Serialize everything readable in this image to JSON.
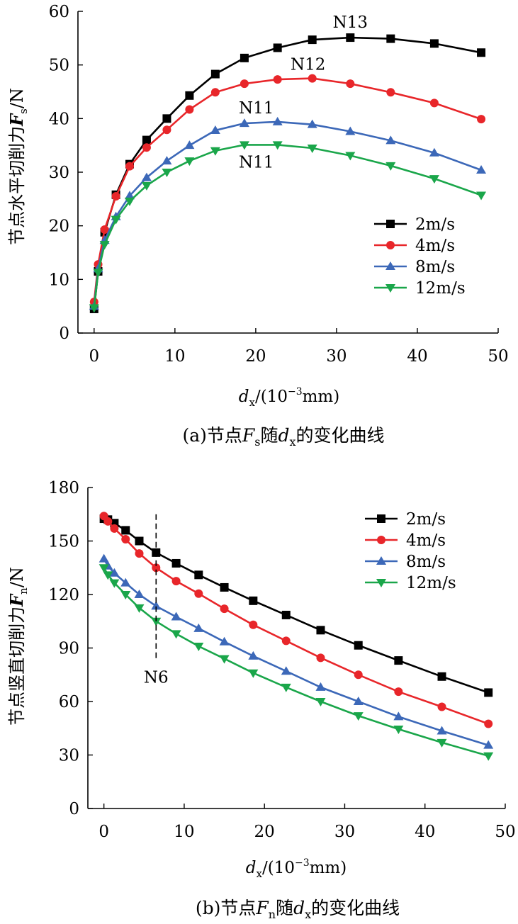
{
  "charts": [
    {
      "caption_pre": "(a)节点",
      "caption_F": "F",
      "caption_F_sub": "s",
      "caption_mid": "随",
      "caption_d": "d",
      "caption_d_sub": "x",
      "caption_post": "的变化曲线",
      "ylabel_pre": "节点水平切削力",
      "ylabel_F": "F",
      "ylabel_F_sub": "s",
      "ylabel_post": "/N",
      "xlabel_d": "d",
      "xlabel_d_sub": "x",
      "xlabel_unit_pre": "/(10",
      "xlabel_unit_exp": "−3",
      "xlabel_unit_post": "mm)"
    },
    {
      "caption_pre": "(b)节点",
      "caption_F": "F",
      "caption_F_sub": "n",
      "caption_mid": "随",
      "caption_d": "d",
      "caption_d_sub": "x",
      "caption_post": "的变化曲线",
      "ylabel_pre": "节点竖直切削力",
      "ylabel_F": "F",
      "ylabel_F_sub": "n",
      "ylabel_post": "/N",
      "xlabel_d": "d",
      "xlabel_d_sub": "x",
      "xlabel_unit_pre": "/(10",
      "xlabel_unit_exp": "−3",
      "xlabel_unit_post": "mm)"
    }
  ],
  "chart_data": [
    {
      "type": "line",
      "xlim": [
        -2,
        50
      ],
      "ylim": [
        0,
        60
      ],
      "xticks": [
        0,
        10,
        20,
        30,
        40,
        50
      ],
      "yticks": [
        0,
        10,
        20,
        30,
        40,
        50,
        60
      ],
      "grid": false,
      "legend": "right",
      "series": [
        {
          "name": "2m/s",
          "color": "#000000",
          "marker": "square",
          "x": [
            0,
            0.5,
            1.3,
            2.7,
            4.4,
            6.5,
            9.0,
            11.8,
            15.0,
            18.6,
            22.7,
            27.0,
            31.7,
            36.7,
            42.1,
            47.9
          ],
          "y": [
            4.5,
            11.5,
            18.8,
            25.8,
            31.5,
            36.0,
            40.0,
            44.3,
            48.3,
            51.3,
            53.2,
            54.7,
            55.1,
            54.9,
            54.0,
            52.3
          ]
        },
        {
          "name": "4m/s",
          "color": "#e8262a",
          "marker": "circle",
          "x": [
            0,
            0.5,
            1.3,
            2.7,
            4.4,
            6.5,
            9.0,
            11.8,
            15.0,
            18.6,
            22.7,
            27.0,
            31.7,
            36.7,
            42.1,
            47.9
          ],
          "y": [
            5.8,
            12.8,
            19.3,
            25.5,
            31.1,
            34.6,
            37.9,
            41.7,
            44.9,
            46.5,
            47.3,
            47.5,
            46.5,
            44.9,
            42.9,
            39.9
          ]
        },
        {
          "name": "8m/s",
          "color": "#3c68b8",
          "marker": "triangle-up",
          "x": [
            0,
            0.5,
            1.3,
            2.7,
            4.4,
            6.5,
            9.0,
            11.8,
            15.0,
            18.6,
            22.7,
            27.0,
            31.7,
            36.7,
            42.1,
            47.9
          ],
          "y": [
            5.0,
            12.0,
            17.3,
            21.7,
            25.6,
            29.0,
            32.1,
            35.0,
            37.8,
            39.1,
            39.4,
            38.9,
            37.6,
            35.9,
            33.6,
            30.4
          ]
        },
        {
          "name": "12m/s",
          "color": "#1aa64a",
          "marker": "triangle-down",
          "x": [
            0,
            0.5,
            1.3,
            2.7,
            4.4,
            6.5,
            9.0,
            11.8,
            15.0,
            18.6,
            22.7,
            27.0,
            31.7,
            36.7,
            42.1,
            47.9
          ],
          "y": [
            4.7,
            11.3,
            16.5,
            21.2,
            24.6,
            27.5,
            30.0,
            32.1,
            34.0,
            35.1,
            35.1,
            34.5,
            33.1,
            31.2,
            28.8,
            25.7
          ]
        }
      ],
      "annotations": [
        {
          "text": "N13",
          "x": 31.7,
          "y": 55.1
        },
        {
          "text": "N12",
          "x": 27.0,
          "y": 47.5
        },
        {
          "text": "N11",
          "x": 22.7,
          "y": 39.4
        },
        {
          "text": "N11",
          "x": 22.7,
          "y": 35.1
        }
      ]
    },
    {
      "type": "line",
      "xlim": [
        -2,
        50
      ],
      "ylim": [
        0,
        180
      ],
      "xticks": [
        0,
        10,
        20,
        30,
        40,
        50
      ],
      "yticks": [
        0,
        30,
        60,
        90,
        120,
        150,
        180
      ],
      "grid": false,
      "legend": "top-right",
      "series": [
        {
          "name": "2m/s",
          "color": "#000000",
          "marker": "square",
          "x": [
            0,
            0.5,
            1.3,
            2.7,
            4.4,
            6.5,
            9.0,
            11.8,
            15.0,
            18.6,
            22.7,
            27.0,
            31.7,
            36.7,
            42.1,
            47.9
          ],
          "y": [
            162.5,
            162,
            160,
            156,
            150,
            143.5,
            137.5,
            131,
            124,
            116.5,
            108.5,
            100,
            91.5,
            83,
            74,
            65
          ]
        },
        {
          "name": "4m/s",
          "color": "#e8262a",
          "marker": "circle",
          "x": [
            0,
            0.5,
            1.3,
            2.7,
            4.4,
            6.5,
            9.0,
            11.8,
            15.0,
            18.6,
            22.7,
            27.0,
            31.7,
            36.7,
            42.1,
            47.9
          ],
          "y": [
            164,
            161,
            157,
            151,
            143,
            135,
            127.5,
            120.5,
            112,
            103,
            94,
            84.5,
            75,
            65.5,
            57,
            47.5
          ]
        },
        {
          "name": "8m/s",
          "color": "#3c68b8",
          "marker": "triangle-up",
          "x": [
            0,
            0.5,
            1.3,
            2.7,
            4.4,
            6.5,
            9.0,
            11.8,
            15.0,
            18.6,
            22.7,
            27.0,
            31.7,
            36.7,
            42.1,
            47.9
          ],
          "y": [
            140,
            136,
            132,
            126.5,
            120,
            113.5,
            107.5,
            101,
            93.5,
            85.5,
            77,
            68,
            60,
            51.5,
            43.5,
            35.5
          ]
        },
        {
          "name": "12m/s",
          "color": "#1aa64a",
          "marker": "triangle-down",
          "x": [
            0,
            0.5,
            1.3,
            2.7,
            4.4,
            6.5,
            9.0,
            11.8,
            15.0,
            18.6,
            22.7,
            27.0,
            31.7,
            36.7,
            42.1,
            47.9
          ],
          "y": [
            135,
            131,
            126.5,
            120,
            112.5,
            105,
            98,
            91,
            84,
            76,
            68,
            60,
            52,
            44.5,
            37,
            29.5
          ]
        }
      ],
      "annotations": [
        {
          "text": "N6",
          "x": 6.5,
          "y": 80,
          "vline_x": 6.5
        }
      ]
    }
  ]
}
